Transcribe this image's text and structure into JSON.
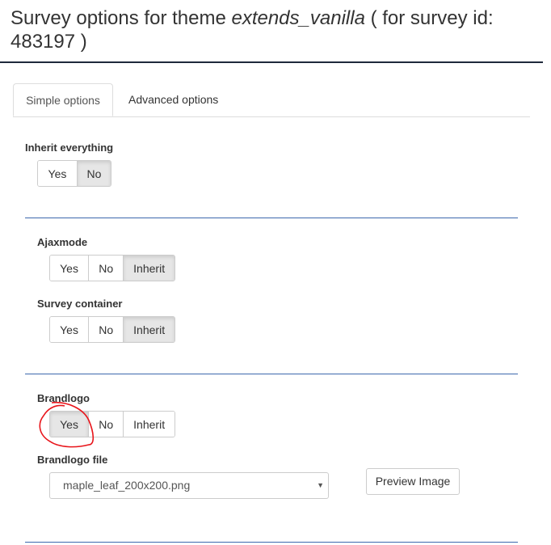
{
  "header": {
    "title_prefix": "Survey options for theme ",
    "theme_name": "extends_vanilla",
    "title_suffix": " ( for survey id: 483197 )"
  },
  "tabs": [
    {
      "label": "Simple options",
      "active": true
    },
    {
      "label": "Advanced options",
      "active": false
    }
  ],
  "inherit_everything": {
    "label": "Inherit everything",
    "options": [
      "Yes",
      "No"
    ],
    "selected": "No"
  },
  "ajaxmode": {
    "label": "Ajaxmode",
    "options": [
      "Yes",
      "No",
      "Inherit"
    ],
    "selected": "Inherit"
  },
  "survey_container": {
    "label": "Survey container",
    "options": [
      "Yes",
      "No",
      "Inherit"
    ],
    "selected": "Inherit"
  },
  "brandlogo": {
    "label": "Brandlogo",
    "options": [
      "Yes",
      "No",
      "Inherit"
    ],
    "selected": "Yes"
  },
  "brandlogo_file": {
    "label": "Brandlogo file",
    "value": "maple_leaf_200x200.png",
    "preview_label": "Preview Image"
  },
  "annotation": {
    "color": "#e8141a"
  }
}
